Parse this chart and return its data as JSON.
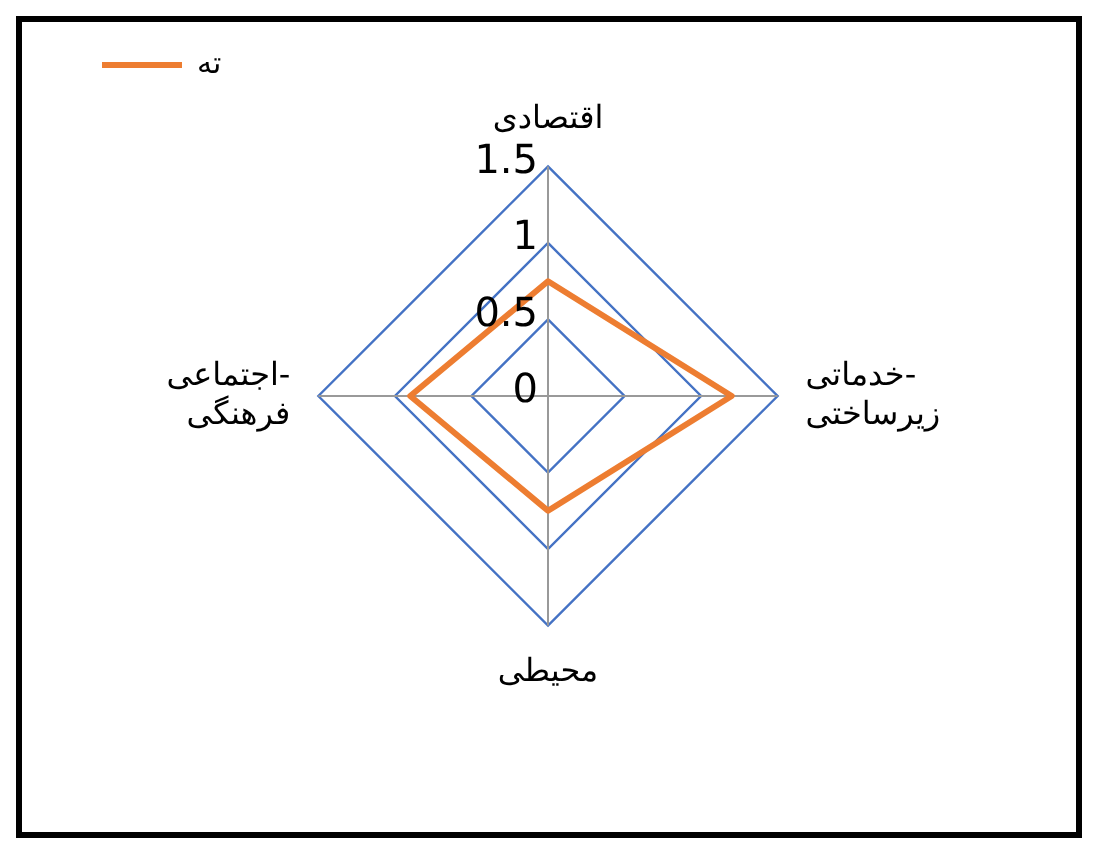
{
  "chart_data": {
    "type": "radar",
    "categories": [
      "اقتصادی",
      "خدماتی- زیرساختی",
      "محیطی",
      "اجتماعی- فرهنگی"
    ],
    "series": [
      {
        "name": "ته",
        "color": "#ed7d31",
        "values": [
          0.75,
          1.2,
          0.75,
          0.9
        ]
      }
    ],
    "ylim": [
      0,
      1.5
    ],
    "yticks": [
      0,
      0.5,
      1,
      1.5
    ],
    "grid": true,
    "legend": "top left",
    "marker": "none"
  }
}
